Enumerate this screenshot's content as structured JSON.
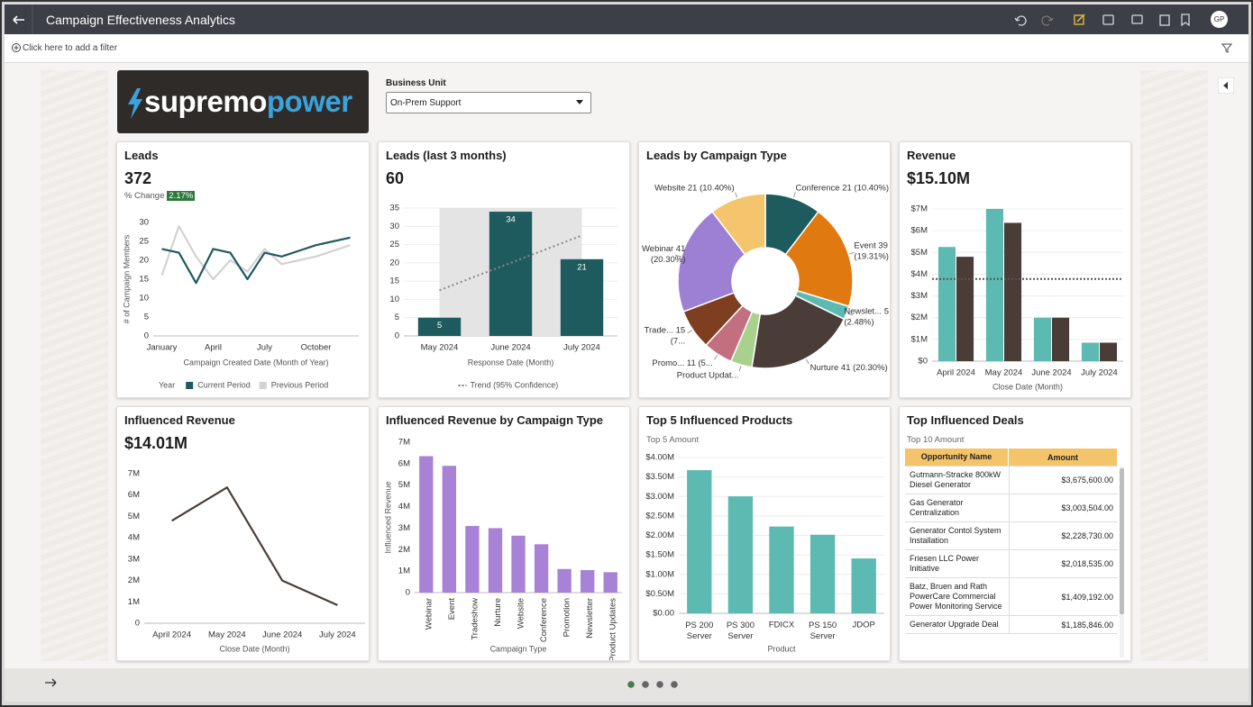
{
  "header": {
    "title": "Campaign Effectiveness Analytics",
    "avatar": "GP"
  },
  "filter_bar": {
    "placeholder": "Click here to add a filter"
  },
  "logo": {
    "part1": "supremo",
    "part2": "power"
  },
  "business_unit": {
    "label": "Business Unit",
    "value": "On-Prem Support"
  },
  "tiles": [
    {
      "title": "Leads",
      "kpi": "372",
      "change_label": "% Change",
      "change_value": "2.17%",
      "chart_data": {
        "type": "line",
        "categories": [
          "January",
          null,
          null,
          "April",
          null,
          null,
          "July",
          null,
          null,
          "October",
          null,
          null
        ],
        "series": [
          {
            "name": "Current Period",
            "color": "#1e5b5f",
            "values": [
              23,
              22,
              14,
              23,
              22,
              15,
              22,
              21,
              22.5,
              24,
              25,
              26
            ]
          },
          {
            "name": "Previous Period",
            "color": "#d2d2d2",
            "values": [
              16,
              29,
              21,
              15,
              20,
              17,
              23,
              19,
              20,
              21,
              22.5,
              24
            ]
          }
        ],
        "ylim": [
          0,
          30
        ],
        "yticks": [
          0,
          5,
          10,
          15,
          20,
          25,
          30
        ],
        "grid": false,
        "y_label": "# of Campaign Members",
        "x_label": "Campaign Created Date (Month of Year)",
        "legend_title": "Year"
      }
    },
    {
      "title": "Leads (last 3 months)",
      "kpi": "60",
      "chart_data": {
        "type": "bar",
        "categories": [
          "May 2024",
          "June 2024",
          "July 2024"
        ],
        "values": [
          5,
          34,
          21
        ],
        "color": "#1e5b5f",
        "data_labels": true,
        "ylim": [
          0,
          35
        ],
        "yticks": [
          0,
          5,
          10,
          15,
          20,
          25,
          30,
          35
        ],
        "grid": true,
        "x_label": "Response Date (Month)",
        "trend": {
          "name": "Trend (95% Confidence)",
          "values": [
            12.5,
            27.5
          ]
        }
      }
    },
    {
      "title": "Leads by Campaign Type",
      "chart_data": {
        "type": "pie",
        "donut": true,
        "values": [
          21,
          39,
          5,
          41,
          8,
          11,
          15,
          41,
          21
        ],
        "value_labels": [
          "Conference 21 (10.40%)",
          "Event 39 (19.31%)",
          "Newslet... 5 (2.48%)",
          "Nurture 41 (20.30%)",
          "Product Updat...",
          "Promo... 11 (5...",
          "Trade... 15 (7...",
          "Webinar 41 (20.30%)",
          "Website 21 (10.40%)"
        ],
        "colors": [
          "#1e5b5f",
          "#e07a10",
          "#5cbab2",
          "#4a3d38",
          "#a9d18e",
          "#c2707f",
          "#7d3f20",
          "#9d7fd4",
          "#f5c56d"
        ]
      }
    },
    {
      "title": "Revenue",
      "kpi": "$15.10M",
      "chart_data": {
        "type": "grouped_bar",
        "categories": [
          "April 2024",
          "May 2024",
          "June 2024",
          "July 2024"
        ],
        "series": [
          {
            "color": "#5cbab2",
            "values": [
              5.25,
              7.0,
              2.0,
              0.85
            ]
          },
          {
            "color": "#4a3d38",
            "values": [
              4.8,
              6.36,
              2.0,
              0.85
            ]
          }
        ],
        "reference_line": 3.78,
        "ylim": [
          0,
          7
        ],
        "yticks": [
          {
            "value": 0,
            "label": "$0"
          },
          {
            "value": 1,
            "label": "$1M"
          },
          {
            "value": 2,
            "label": "$2M"
          },
          {
            "value": 3,
            "label": "$3M"
          },
          {
            "value": 4,
            "label": "$4M"
          },
          {
            "value": 5,
            "label": "$5M"
          },
          {
            "value": 6,
            "label": "$6M"
          },
          {
            "value": 7,
            "label": "$7M"
          }
        ],
        "grid": true,
        "x_label": "Close Date (Month)"
      }
    },
    {
      "title": "Influenced Revenue",
      "kpi": "$14.01M",
      "chart_data": {
        "type": "line",
        "categories": [
          "April 2024",
          "May 2024",
          "June 2024",
          "July 2024"
        ],
        "values": [
          4.8,
          6.36,
          2.0,
          0.85
        ],
        "color": "#4a3d38",
        "ylim": [
          0,
          7
        ],
        "yticks": [
          0,
          {
            "value": 1,
            "label": "1M"
          },
          {
            "value": 2,
            "label": "2M"
          },
          {
            "value": 3,
            "label": "3M"
          },
          {
            "value": 4,
            "label": "4M"
          },
          {
            "value": 5,
            "label": "5M"
          },
          {
            "value": 6,
            "label": "6M"
          },
          {
            "value": 7,
            "label": "7M"
          }
        ],
        "grid": false,
        "x_label": "Close Date (Month)"
      }
    },
    {
      "title": "Influenced Revenue by Campaign Type",
      "chart_data": {
        "type": "bar",
        "categories": [
          "Webinar",
          "Event",
          "Tradeshow",
          "Nurture",
          "Website",
          "Conference",
          "Promotion",
          "Newsletter",
          "Product Updates"
        ],
        "values": [
          6.35,
          5.9,
          3.1,
          3.0,
          2.65,
          2.25,
          1.1,
          1.05,
          0.95
        ],
        "color": "#a782d6",
        "ylim": [
          0,
          7
        ],
        "yticks": [
          0,
          {
            "value": 1,
            "label": "1M"
          },
          {
            "value": 2,
            "label": "2M"
          },
          {
            "value": 3,
            "label": "3M"
          },
          {
            "value": 4,
            "label": "4M"
          },
          {
            "value": 5,
            "label": "5M"
          },
          {
            "value": 6,
            "label": "6M"
          },
          {
            "value": 7,
            "label": "7M"
          }
        ],
        "grid": false,
        "y_label": "Influenced Revenue",
        "x_label": "Campaign Type"
      }
    },
    {
      "title": "Top 5 Influenced Products",
      "subtitle": "Top 5 Amount",
      "chart_data": {
        "type": "bar",
        "categories": [
          "PS 200 Server",
          "PS 300 Server",
          "FDICX",
          "PS 150 Server",
          "JDOP"
        ],
        "values": [
          3.6756,
          3.003504,
          2.22873,
          2.018535,
          1.409192
        ],
        "color": "#5cbab2",
        "ylim": [
          0,
          4
        ],
        "yticks": [
          {
            "value": 0,
            "label": "$0.00"
          },
          {
            "value": 0.5,
            "label": "$0.50M"
          },
          {
            "value": 1,
            "label": "$1.00M"
          },
          {
            "value": 1.5,
            "label": "$1.50M"
          },
          {
            "value": 2,
            "label": "$2.00M"
          },
          {
            "value": 2.5,
            "label": "$2.50M"
          },
          {
            "value": 3,
            "label": "$3.00M"
          },
          {
            "value": 3.5,
            "label": "$3.50M"
          },
          {
            "value": 4,
            "label": "$4.00M"
          }
        ],
        "grid": true,
        "x_label": "Product"
      }
    },
    {
      "title": "Top Influenced Deals",
      "subtitle": "Top 10 Amount",
      "table": {
        "columns": [
          "Opportunity Name",
          "Amount"
        ],
        "rows": [
          [
            "Gutmann-Stracke 800kW Diesel Generator",
            "$3,675,600.00"
          ],
          [
            "Gas Generator Centralization",
            "$3,003,504.00"
          ],
          [
            "Generator Contol System Installation",
            "$2,228,730.00"
          ],
          [
            "Friesen LLC Power Initiative",
            "$2,018,535.00"
          ],
          [
            "Batz, Bruen and Rath PowerCare Commercial Power Monitoring Service",
            "$1,409,192.00"
          ],
          [
            "Generator Upgrade Deal",
            "$1,185,846.00"
          ]
        ]
      }
    }
  ]
}
